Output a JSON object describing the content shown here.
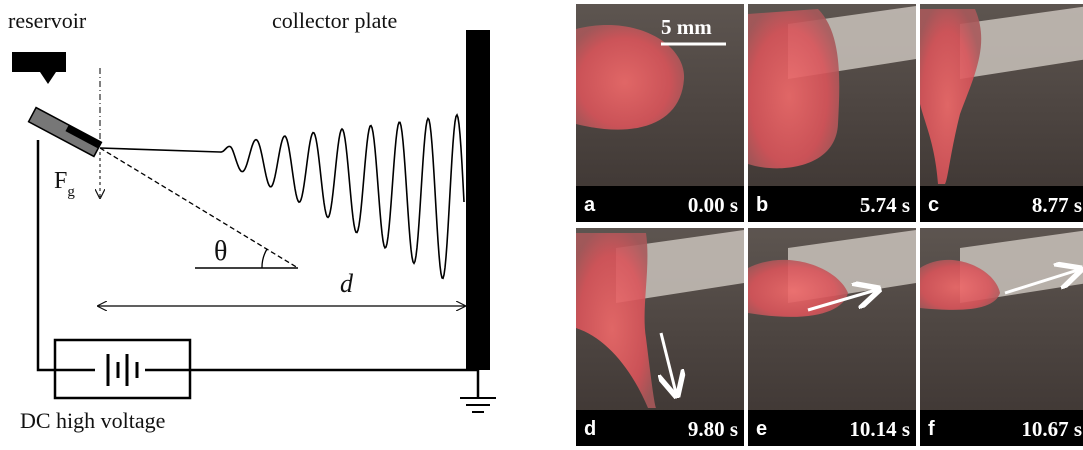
{
  "diagram": {
    "reservoir": "reservoir",
    "collector": "collector plate",
    "force": {
      "symbol": "F",
      "subscript": "g"
    },
    "angle": "θ",
    "distance": "d",
    "source": "DC high voltage"
  },
  "photos": {
    "scale_bar": "5 mm",
    "panels": [
      {
        "letter": "a",
        "time": "0.00 s"
      },
      {
        "letter": "b",
        "time": "5.74 s"
      },
      {
        "letter": "c",
        "time": "8.77 s"
      },
      {
        "letter": "d",
        "time": "9.80 s"
      },
      {
        "letter": "e",
        "time": "10.14 s"
      },
      {
        "letter": "f",
        "time": "10.67 s"
      }
    ]
  }
}
